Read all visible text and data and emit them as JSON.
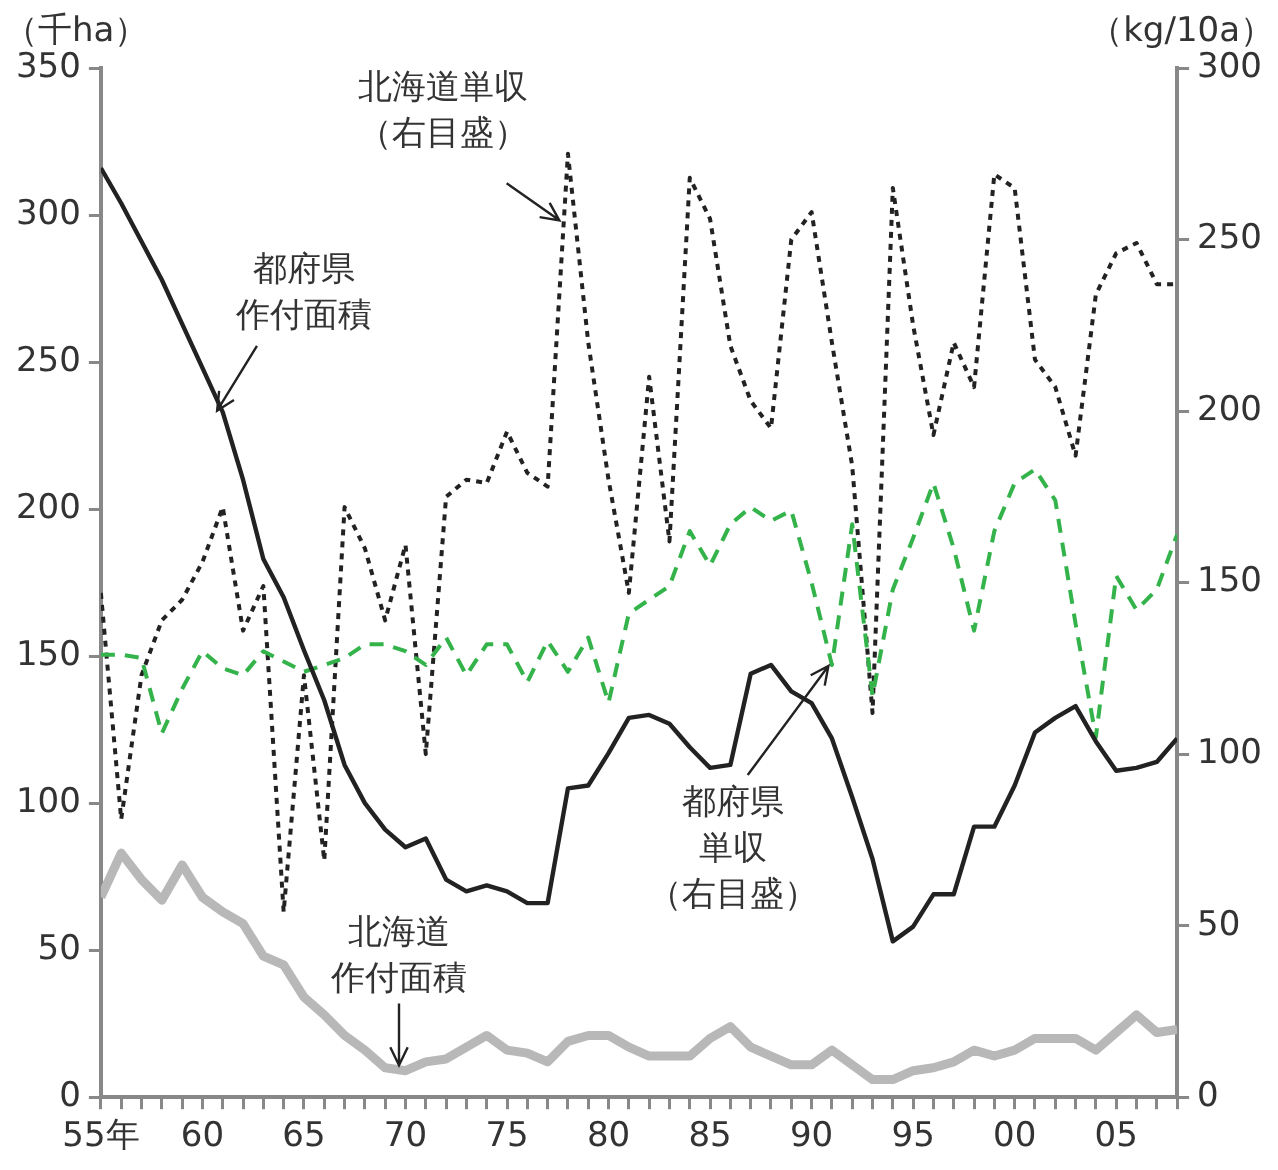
{
  "chart_data": {
    "type": "line",
    "ylabel": "（千ha）",
    "y2label": "（kg/10a）",
    "x": [
      "1955",
      "1956",
      "1957",
      "1958",
      "1959",
      "1960",
      "1961",
      "1962",
      "1963",
      "1964",
      "1965",
      "1966",
      "1967",
      "1968",
      "1969",
      "1970",
      "1971",
      "1972",
      "1973",
      "1974",
      "1975",
      "1976",
      "1977",
      "1978",
      "1979",
      "1980",
      "1981",
      "1982",
      "1983",
      "1984",
      "1985",
      "1986",
      "1987",
      "1988",
      "1989",
      "1990",
      "1991",
      "1992",
      "1993",
      "1994",
      "1995",
      "1996",
      "1997",
      "1998",
      "1999",
      "2000",
      "2001",
      "2002",
      "2003",
      "2004",
      "2005",
      "2006",
      "2007",
      "2008"
    ],
    "series": [
      {
        "name": "都府県作付面積",
        "color": "#222222",
        "line_style": "solid",
        "values": [
          316,
          304,
          291,
          278,
          263,
          248,
          233,
          210,
          183,
          170,
          152,
          135,
          113,
          100,
          91,
          85,
          88,
          74,
          70,
          72,
          70,
          66,
          66,
          105,
          106,
          117,
          129,
          130,
          127,
          119,
          112,
          113,
          144,
          147,
          138,
          134,
          122,
          102,
          81,
          53,
          58,
          69,
          69,
          92,
          92,
          106,
          124,
          129,
          133,
          121,
          111,
          112,
          114,
          122
        ]
      },
      {
        "name": "北海道作付面積",
        "color": "#b8b8b8",
        "line_style": "solid",
        "values": [
          68,
          83,
          74,
          67,
          79,
          68,
          63,
          59,
          48,
          45,
          34,
          28,
          21,
          16,
          10,
          9,
          12,
          13,
          17,
          21,
          16,
          15,
          12,
          19,
          21,
          21,
          17,
          14,
          14,
          14,
          20,
          24,
          17,
          14,
          11,
          11,
          16,
          11,
          6,
          6,
          9,
          10,
          12,
          16,
          14,
          16,
          20,
          20,
          20,
          16,
          22,
          28,
          22,
          23
        ]
      },
      {
        "name": "都府県単収（右目盛）",
        "color": "#33b34a",
        "line_style": "dashed",
        "axis": "y2",
        "values": [
          129,
          129,
          128,
          106,
          119,
          130,
          125,
          123,
          130,
          127,
          124,
          126,
          128,
          132,
          132,
          130,
          126,
          134,
          123,
          132,
          132,
          121,
          133,
          124,
          134,
          115,
          141,
          145,
          149,
          165,
          155,
          167,
          172,
          168,
          171,
          150,
          126,
          167,
          117,
          148,
          163,
          179,
          160,
          136,
          165,
          179,
          183,
          174,
          138,
          105,
          152,
          142,
          148,
          164
        ]
      },
      {
        "name": "北海道単収（右目盛）",
        "color": "#222222",
        "line_style": "dotted",
        "axis": "y2",
        "values": [
          147,
          81,
          123,
          139,
          145,
          156,
          172,
          136,
          149,
          54,
          123,
          69,
          172,
          160,
          139,
          161,
          100,
          175,
          180,
          179,
          194,
          182,
          178,
          275,
          220,
          180,
          147,
          210,
          162,
          268,
          256,
          219,
          203,
          195,
          250,
          258,
          220,
          184,
          112,
          265,
          225,
          193,
          220,
          207,
          269,
          265,
          215,
          207,
          187,
          234,
          246,
          249,
          237,
          237
        ]
      }
    ],
    "xlim": [
      "1955",
      "2008"
    ],
    "xticks": [
      {
        "value": "1955",
        "label": "55年"
      },
      {
        "value": "1956",
        "label": null
      },
      {
        "value": "1957",
        "label": null
      },
      {
        "value": "1958",
        "label": null
      },
      {
        "value": "1959",
        "label": null
      },
      {
        "value": "1960",
        "label": "60"
      },
      {
        "value": "1961",
        "label": null
      },
      {
        "value": "1962",
        "label": null
      },
      {
        "value": "1963",
        "label": null
      },
      {
        "value": "1964",
        "label": null
      },
      {
        "value": "1965",
        "label": "65"
      },
      {
        "value": "1966",
        "label": null
      },
      {
        "value": "1967",
        "label": null
      },
      {
        "value": "1968",
        "label": null
      },
      {
        "value": "1969",
        "label": null
      },
      {
        "value": "1970",
        "label": "70"
      },
      {
        "value": "1971",
        "label": null
      },
      {
        "value": "1972",
        "label": null
      },
      {
        "value": "1973",
        "label": null
      },
      {
        "value": "1974",
        "label": null
      },
      {
        "value": "1975",
        "label": "75"
      },
      {
        "value": "1976",
        "label": null
      },
      {
        "value": "1977",
        "label": null
      },
      {
        "value": "1978",
        "label": null
      },
      {
        "value": "1979",
        "label": null
      },
      {
        "value": "1980",
        "label": "80"
      },
      {
        "value": "1981",
        "label": null
      },
      {
        "value": "1982",
        "label": null
      },
      {
        "value": "1983",
        "label": null
      },
      {
        "value": "1984",
        "label": null
      },
      {
        "value": "1985",
        "label": "85"
      },
      {
        "value": "1986",
        "label": null
      },
      {
        "value": "1987",
        "label": null
      },
      {
        "value": "1988",
        "label": null
      },
      {
        "value": "1989",
        "label": null
      },
      {
        "value": "1990",
        "label": "90"
      },
      {
        "value": "1991",
        "label": null
      },
      {
        "value": "1992",
        "label": null
      },
      {
        "value": "1993",
        "label": null
      },
      {
        "value": "1994",
        "label": null
      },
      {
        "value": "1995",
        "label": "95"
      },
      {
        "value": "1996",
        "label": null
      },
      {
        "value": "1997",
        "label": null
      },
      {
        "value": "1998",
        "label": null
      },
      {
        "value": "1999",
        "label": null
      },
      {
        "value": "2000",
        "label": "00"
      },
      {
        "value": "2001",
        "label": null
      },
      {
        "value": "2002",
        "label": null
      },
      {
        "value": "2003",
        "label": null
      },
      {
        "value": "2004",
        "label": null
      },
      {
        "value": "2005",
        "label": "05"
      },
      {
        "value": "2006",
        "label": null
      },
      {
        "value": "2007",
        "label": null
      },
      {
        "value": "2008",
        "label": null
      }
    ],
    "ylim": [
      0,
      350
    ],
    "yticks": [
      0,
      50,
      100,
      150,
      200,
      250,
      300,
      350
    ],
    "y2lim": [
      0,
      300
    ],
    "y2ticks": [
      0,
      50,
      100,
      150,
      200,
      250,
      300
    ],
    "grid": false,
    "legend": false,
    "marker": "none"
  }
}
